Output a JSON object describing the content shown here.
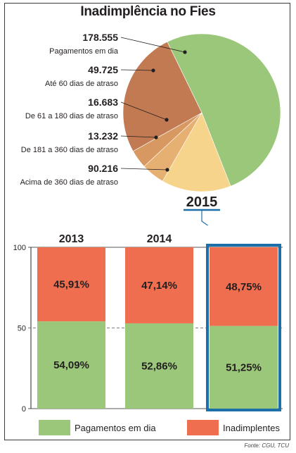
{
  "title": "Inadimplência no Fies",
  "source": "Fonte: CGU, TCU",
  "chart_data": [
    {
      "type": "pie",
      "title": "2015",
      "slices": [
        {
          "label": "Pagamentos em dia",
          "value": 178555,
          "value_text": "178.555",
          "color": "#9bc77a"
        },
        {
          "label": "Até 60 dias de atraso",
          "value": 49725,
          "value_text": "49.725",
          "color": "#f6d48c"
        },
        {
          "label": "De 61 a 180 dias de atraso",
          "value": 16683,
          "value_text": "16.683",
          "color": "#e7b073"
        },
        {
          "label": "De 181 a 360 dias de atraso",
          "value": 13232,
          "value_text": "13.232",
          "color": "#d79861"
        },
        {
          "label": "Acima de 360 dias de atraso",
          "value": 90216,
          "value_text": "90.216",
          "color": "#c27a52"
        }
      ]
    },
    {
      "type": "bar",
      "stacked": true,
      "categories": [
        "2013",
        "2014",
        "2015"
      ],
      "ylim": [
        0,
        100
      ],
      "yticks": [
        "0",
        "50",
        "100"
      ],
      "highlighted_category": "2015",
      "series": [
        {
          "name": "Pagamentos em dia",
          "values": [
            54.09,
            52.86,
            51.25
          ],
          "labels": [
            "54,09%",
            "52,86%",
            "51,25%"
          ],
          "color": "#9bc77a"
        },
        {
          "name": "Inadimplentes",
          "values": [
            45.91,
            47.14,
            48.75
          ],
          "labels": [
            "45,91%",
            "47,14%",
            "48,75%"
          ],
          "color": "#ee6e4f"
        }
      ],
      "legend": {
        "placement": "bottom"
      },
      "highlight_color": "#1c6fa8"
    }
  ]
}
